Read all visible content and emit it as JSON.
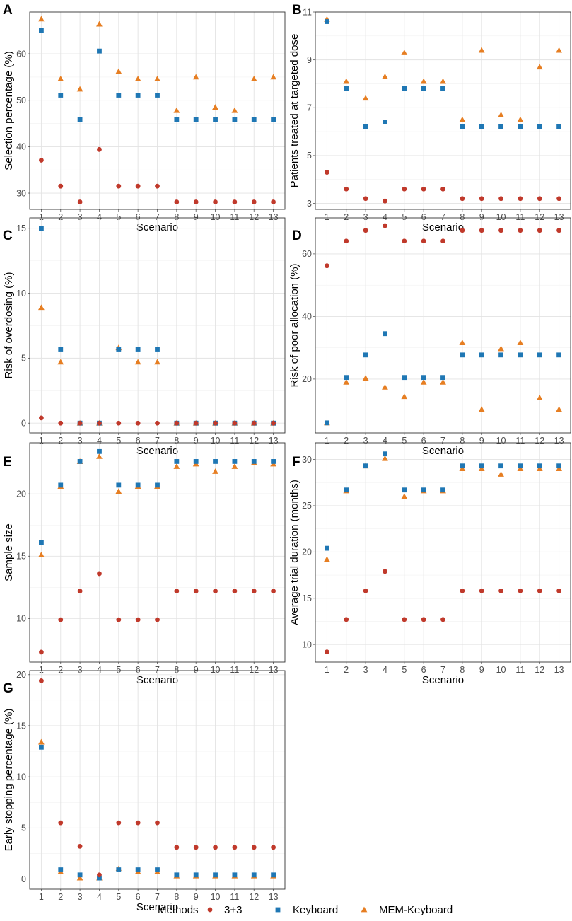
{
  "figure": {
    "legend": {
      "title": "Methods",
      "placement": "bottom-center"
    },
    "methods": [
      {
        "name": "3+3",
        "color": "#C0392B",
        "marker": "circle"
      },
      {
        "name": "Keyboard",
        "color": "#1F77B4",
        "marker": "square"
      },
      {
        "name": "MEM-Keyboard",
        "color": "#E67E22",
        "marker": "triangle"
      }
    ]
  },
  "chart_data": [
    {
      "type": "scatter",
      "panel": "A",
      "xlabel": "Scenario",
      "ylabel": "Selection percentage (%)",
      "x": [
        1,
        2,
        3,
        4,
        5,
        6,
        7,
        8,
        9,
        10,
        11,
        12,
        13
      ],
      "ylim": [
        26.5,
        69
      ],
      "yticks": [
        30,
        40,
        50,
        60
      ],
      "series": [
        {
          "name": "3+3",
          "values": [
            37.1,
            31.5,
            28.1,
            39.4,
            31.5,
            31.5,
            31.5,
            28.1,
            28.1,
            28.1,
            28.1,
            28.1,
            28.1
          ]
        },
        {
          "name": "Keyboard",
          "values": [
            65.0,
            51.1,
            45.9,
            60.6,
            51.1,
            51.1,
            51.1,
            45.9,
            45.9,
            45.9,
            45.9,
            45.9,
            45.9
          ]
        },
        {
          "name": "MEM-Keyboard",
          "values": [
            67.5,
            54.6,
            52.4,
            66.4,
            56.2,
            54.6,
            54.6,
            47.8,
            55.0,
            48.5,
            47.8,
            54.6,
            55.0
          ]
        }
      ]
    },
    {
      "type": "scatter",
      "panel": "B",
      "xlabel": "Scenario",
      "ylabel": "Patients treated at targeted dose",
      "x": [
        1,
        2,
        3,
        4,
        5,
        6,
        7,
        8,
        9,
        10,
        11,
        12,
        13
      ],
      "ylim": [
        2.75,
        11
      ],
      "yticks": [
        3,
        5,
        7,
        9,
        11
      ],
      "series": [
        {
          "name": "3+3",
          "values": [
            4.3,
            3.6,
            3.2,
            3.1,
            3.6,
            3.6,
            3.6,
            3.2,
            3.2,
            3.2,
            3.2,
            3.2,
            3.2
          ]
        },
        {
          "name": "Keyboard",
          "values": [
            10.6,
            7.8,
            6.2,
            6.4,
            7.8,
            7.8,
            7.8,
            6.2,
            6.2,
            6.2,
            6.2,
            6.2,
            6.2
          ]
        },
        {
          "name": "MEM-Keyboard",
          "values": [
            10.7,
            8.1,
            7.4,
            8.3,
            9.3,
            8.1,
            8.1,
            6.5,
            9.4,
            6.7,
            6.5,
            8.7,
            9.4
          ]
        }
      ]
    },
    {
      "type": "scatter",
      "panel": "C",
      "xlabel": "Scenario",
      "ylabel": "Risk of overdosing (%)",
      "x": [
        1,
        2,
        3,
        4,
        5,
        6,
        7,
        8,
        9,
        10,
        11,
        12,
        13
      ],
      "ylim": [
        -0.75,
        15.8
      ],
      "yticks": [
        0,
        5,
        10,
        15
      ],
      "series": [
        {
          "name": "3+3",
          "values": [
            0.4,
            0,
            0,
            0,
            0,
            0,
            0,
            0,
            0,
            0,
            0,
            0,
            0
          ]
        },
        {
          "name": "Keyboard",
          "values": [
            15.0,
            5.7,
            0,
            0,
            5.7,
            5.7,
            5.7,
            0,
            0,
            0,
            0,
            0,
            0
          ]
        },
        {
          "name": "MEM-Keyboard",
          "values": [
            8.9,
            4.7,
            0,
            0,
            5.8,
            4.7,
            4.7,
            0,
            0,
            0,
            0,
            0,
            0
          ]
        }
      ]
    },
    {
      "type": "scatter",
      "panel": "D",
      "xlabel": "Scenario",
      "ylabel": "Risk of poor allocation (%)",
      "x": [
        1,
        2,
        3,
        4,
        5,
        6,
        7,
        8,
        9,
        10,
        11,
        12,
        13
      ],
      "ylim": [
        2.8,
        71.5
      ],
      "yticks": [
        20,
        40,
        60
      ],
      "series": [
        {
          "name": "3+3",
          "values": [
            56.2,
            64.1,
            67.5,
            69.0,
            64.1,
            64.1,
            64.1,
            67.5,
            67.5,
            67.5,
            67.5,
            67.5,
            67.5
          ]
        },
        {
          "name": "Keyboard",
          "values": [
            6.0,
            20.5,
            27.7,
            34.5,
            20.5,
            20.5,
            20.5,
            27.7,
            27.7,
            27.7,
            27.7,
            27.7,
            27.7
          ]
        },
        {
          "name": "MEM-Keyboard",
          "values": [
            6.0,
            19.0,
            20.3,
            17.4,
            14.4,
            19.0,
            19.0,
            31.6,
            10.3,
            29.7,
            31.6,
            14.0,
            10.3
          ]
        }
      ]
    },
    {
      "type": "scatter",
      "panel": "E",
      "xlabel": "Scenario",
      "ylabel": "Sample size",
      "x": [
        1,
        2,
        3,
        4,
        5,
        6,
        7,
        8,
        9,
        10,
        11,
        12,
        13
      ],
      "ylim": [
        6.5,
        24.1
      ],
      "yticks": [
        10,
        15,
        20
      ],
      "series": [
        {
          "name": "3+3",
          "values": [
            7.3,
            9.9,
            12.2,
            13.6,
            9.9,
            9.9,
            9.9,
            12.2,
            12.2,
            12.2,
            12.2,
            12.2,
            12.2
          ]
        },
        {
          "name": "Keyboard",
          "values": [
            16.1,
            20.7,
            22.6,
            23.4,
            20.7,
            20.7,
            20.7,
            22.6,
            22.6,
            22.6,
            22.6,
            22.6,
            22.6
          ]
        },
        {
          "name": "MEM-Keyboard",
          "values": [
            15.1,
            20.6,
            22.6,
            23.0,
            20.2,
            20.6,
            20.6,
            22.2,
            22.4,
            21.8,
            22.2,
            22.5,
            22.4
          ]
        }
      ]
    },
    {
      "type": "scatter",
      "panel": "F",
      "xlabel": "Scenario",
      "ylabel": "Average trial duration (months)",
      "x": [
        1,
        2,
        3,
        4,
        5,
        6,
        7,
        8,
        9,
        10,
        11,
        12,
        13
      ],
      "ylim": [
        8.1,
        31.8
      ],
      "yticks": [
        10,
        15,
        20,
        25,
        30
      ],
      "series": [
        {
          "name": "3+3",
          "values": [
            9.2,
            12.7,
            15.8,
            17.9,
            12.7,
            12.7,
            12.7,
            15.8,
            15.8,
            15.8,
            15.8,
            15.8,
            15.8
          ]
        },
        {
          "name": "Keyboard",
          "values": [
            20.4,
            26.7,
            29.3,
            30.6,
            26.7,
            26.7,
            26.7,
            29.3,
            29.3,
            29.3,
            29.3,
            29.3,
            29.3
          ]
        },
        {
          "name": "MEM-Keyboard",
          "values": [
            19.2,
            26.6,
            29.3,
            30.1,
            26.0,
            26.6,
            26.6,
            29.0,
            29.0,
            28.4,
            29.0,
            29.0,
            29.0
          ]
        }
      ]
    },
    {
      "type": "scatter",
      "panel": "G",
      "xlabel": "Scenario",
      "ylabel": "Early stopping percentage (%)",
      "x": [
        1,
        2,
        3,
        4,
        5,
        6,
        7,
        8,
        9,
        10,
        11,
        12,
        13
      ],
      "ylim": [
        -1.0,
        20.4
      ],
      "yticks": [
        0,
        5,
        10,
        15,
        20
      ],
      "series": [
        {
          "name": "3+3",
          "values": [
            19.4,
            5.5,
            3.2,
            0.4,
            5.5,
            5.5,
            5.5,
            3.1,
            3.1,
            3.1,
            3.1,
            3.1,
            3.1
          ]
        },
        {
          "name": "Keyboard",
          "values": [
            12.9,
            0.9,
            0.4,
            0.1,
            0.9,
            0.9,
            0.9,
            0.4,
            0.4,
            0.4,
            0.4,
            0.4,
            0.4
          ]
        },
        {
          "name": "MEM-Keyboard",
          "values": [
            13.4,
            0.7,
            0.1,
            0.1,
            1.0,
            0.7,
            0.7,
            0.3,
            0.3,
            0.3,
            0.3,
            0.3,
            0.3
          ]
        }
      ]
    }
  ]
}
